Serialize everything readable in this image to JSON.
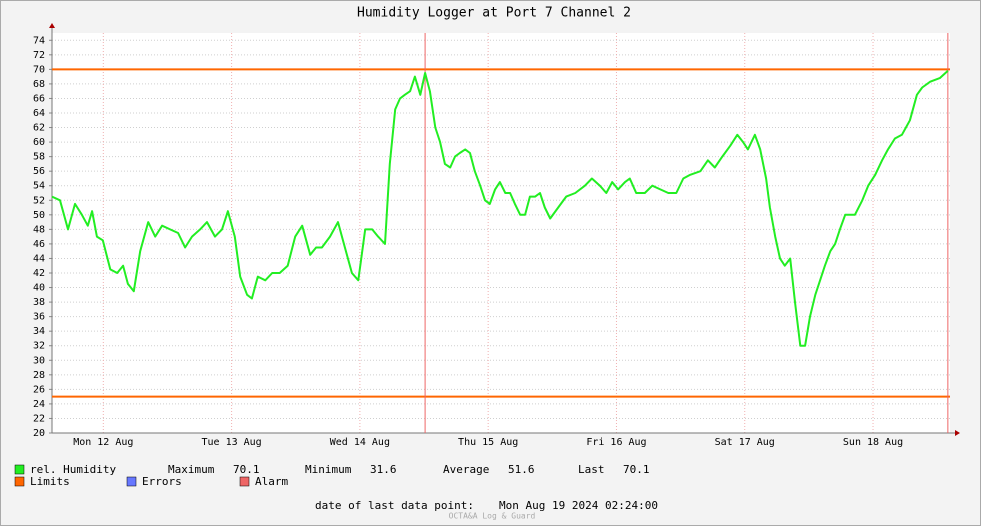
{
  "chart_data": {
    "type": "line",
    "title": "Humidity Logger at Port 7 Channel 2",
    "x": [
      0,
      1.5,
      3.0,
      4.3,
      5.6,
      6.7,
      7.5,
      8.4,
      9.5,
      10.9,
      12.2,
      13.3,
      14.2,
      15.3,
      16.5,
      18.0,
      19.3,
      20.6,
      22.1,
      23.6,
      24.9,
      26.2,
      27.7,
      29.0,
      30.5,
      31.8,
      32.9,
      34.2,
      35.2,
      36.5,
      37.4,
      38.5,
      39.9,
      41.2,
      42.6,
      44.1,
      45.5,
      46.8,
      48.3,
      49.4,
      50.5,
      52.0,
      53.5,
      54.8,
      56.1,
      57.3,
      58.6,
      59.9,
      61.0,
      62.3,
      63.2,
      64.2,
      65.1,
      66.0,
      67.0,
      67.9,
      68.9,
      69.8,
      70.7,
      71.7,
      72.6,
      73.5,
      74.5,
      75.4,
      76.3,
      77.3,
      78.2,
      79.1,
      80.1,
      81.0,
      81.9,
      82.9,
      83.8,
      84.8,
      85.7,
      86.6,
      87.6,
      88.5,
      89.4,
      90.4,
      91.3,
      92.2,
      93.2,
      94.7,
      96.2,
      97.9,
      99.7,
      101.0,
      102.5,
      103.7,
      104.8,
      105.9,
      107.2,
      108.1,
      109.3,
      110.9,
      112.3,
      113.8,
      115.3,
      116.8,
      118.1,
      119.4,
      121.3,
      122.7,
      124.0,
      125.4,
      126.9,
      128.2,
      129.3,
      130.2,
      131.5,
      132.5,
      133.6,
      134.3,
      135.3,
      136.2,
      137.1,
      138.1,
      139.0,
      140.0,
      140.9,
      141.8,
      142.8,
      143.7,
      144.6,
      145.6,
      146.5,
      147.4,
      148.4,
      150.2,
      151.6,
      152.7,
      154.0,
      155.3,
      156.4,
      157.7,
      159.0,
      160.5,
      161.8,
      162.8,
      164.3,
      166.1,
      167.6
    ],
    "series": [
      {
        "name": "rel. Humidity",
        "color": "#22ee22",
        "values": [
          52.5,
          52,
          48,
          51.5,
          50,
          48.5,
          50.5,
          47,
          46.5,
          42.5,
          42,
          43,
          40.5,
          39.5,
          45,
          49,
          47,
          48.5,
          48,
          47.5,
          45.5,
          47,
          48,
          49,
          47,
          48,
          50.5,
          47,
          41.5,
          39,
          38.5,
          41.5,
          41,
          42,
          42,
          43,
          47,
          48.5,
          44.5,
          45.5,
          45.5,
          47,
          49,
          45.5,
          42,
          41,
          48,
          48,
          47,
          46,
          57,
          64.5,
          66,
          66.5,
          67,
          69,
          66.5,
          69.5,
          67,
          62,
          60,
          57,
          56.5,
          58,
          58.5,
          59,
          58.5,
          56,
          54,
          52,
          51.5,
          53.5,
          54.5,
          53,
          53,
          51.5,
          50,
          50,
          52.5,
          52.5,
          53,
          51,
          49.5,
          51,
          52.5,
          53,
          54,
          55,
          54,
          53,
          54.5,
          53.5,
          54.5,
          55,
          53,
          53,
          54,
          53.5,
          53,
          53,
          55,
          55.5,
          56,
          57.5,
          56.5,
          58,
          59.5,
          61,
          60,
          59,
          61,
          59,
          55,
          51,
          47,
          44,
          43,
          44,
          38,
          32,
          32,
          36,
          39,
          41,
          43,
          45,
          46,
          48,
          50,
          50,
          52,
          54,
          55.5,
          57.5,
          59,
          60.5,
          61,
          63,
          66.5,
          67.5,
          68.3,
          68.8,
          69.8
        ]
      }
    ],
    "xlim": [
      0,
      168
    ],
    "xticks": [
      {
        "value": 9.6,
        "label": "Mon 12 Aug"
      },
      {
        "value": 33.6,
        "label": "Tue 13 Aug"
      },
      {
        "value": 57.6,
        "label": "Wed 14 Aug"
      },
      {
        "value": 81.6,
        "label": "Thu 15 Aug"
      },
      {
        "value": 105.6,
        "label": "Fri 16 Aug"
      },
      {
        "value": 129.6,
        "label": "Sat 17 Aug"
      },
      {
        "value": 153.6,
        "label": "Sun 18 Aug"
      }
    ],
    "ylim": [
      20,
      75
    ],
    "yticks": [
      20,
      22,
      24,
      26,
      28,
      30,
      32,
      34,
      36,
      38,
      40,
      42,
      44,
      46,
      48,
      50,
      52,
      54,
      56,
      58,
      60,
      62,
      64,
      66,
      68,
      70,
      72,
      74
    ],
    "grid": true,
    "limits": {
      "name": "Limits",
      "color": "#ff6600",
      "values": [
        70,
        25
      ]
    },
    "alarms": {
      "name": "Alarm",
      "color": "#ee6666",
      "x": [
        69.8,
        167.6
      ]
    },
    "errors": {
      "name": "Errors",
      "color": "#6677ff"
    },
    "stats": [
      {
        "label": "Maximum",
        "value": 70.1
      },
      {
        "label": "Minimum",
        "value": 31.6
      },
      {
        "label": "Average",
        "value": 51.6
      },
      {
        "label": "Last",
        "value": 70.1
      }
    ],
    "last_point_label": "date of last data point:",
    "last_point": "Mon Aug 19 2024 02:24:00",
    "watermark": "OCTA&A Log & Guard"
  }
}
